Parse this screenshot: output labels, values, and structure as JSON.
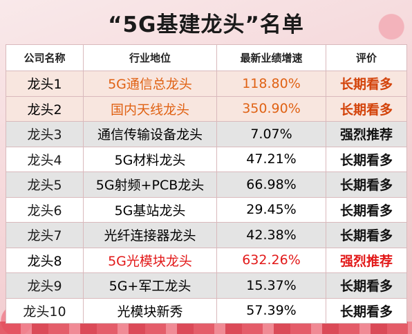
{
  "title": "“5G基建龙头”名单",
  "headers": [
    "公司名称",
    "行业地位",
    "最新业绩增速",
    "评价"
  ],
  "rows": [
    {
      "company": "龙头1",
      "position": "5G通信总龙头",
      "growth": "118.80%",
      "rating": "长期看多",
      "highlight": "orange"
    },
    {
      "company": "龙头2",
      "position": "国内天线龙头",
      "growth": "350.90%",
      "rating": "长期看多",
      "highlight": "orange"
    },
    {
      "company": "龙头3",
      "position": "通信传输设备龙头",
      "growth": "7.07%",
      "rating": "强烈推荐",
      "highlight": ""
    },
    {
      "company": "龙头4",
      "position": "5G材料龙头",
      "growth": "47.21%",
      "rating": "长期看多",
      "highlight": ""
    },
    {
      "company": "龙头5",
      "position": "5G射频+PCB龙头",
      "growth": "66.98%",
      "rating": "长期看多",
      "highlight": ""
    },
    {
      "company": "龙头6",
      "position": "5G基站龙头",
      "growth": "29.45%",
      "rating": "长期看多",
      "highlight": ""
    },
    {
      "company": "龙头7",
      "position": "光纤连接器龙头",
      "growth": "42.38%",
      "rating": "长期看多",
      "highlight": ""
    },
    {
      "company": "龙头8",
      "position": "5G光模块龙头",
      "growth": "632.26%",
      "rating": "强烈推荐",
      "highlight": "red"
    },
    {
      "company": "龙头9",
      "position": "5G+军工龙头",
      "growth": "15.37%",
      "rating": "长期看多",
      "highlight": ""
    },
    {
      "company": "龙头10",
      "position": "光模块新秀",
      "growth": "57.39%",
      "rating": "长期看多",
      "highlight": ""
    }
  ],
  "colors": {
    "orange_text": "#e06214",
    "red_text": "#e21919",
    "header_bg": "#ffffff"
  }
}
